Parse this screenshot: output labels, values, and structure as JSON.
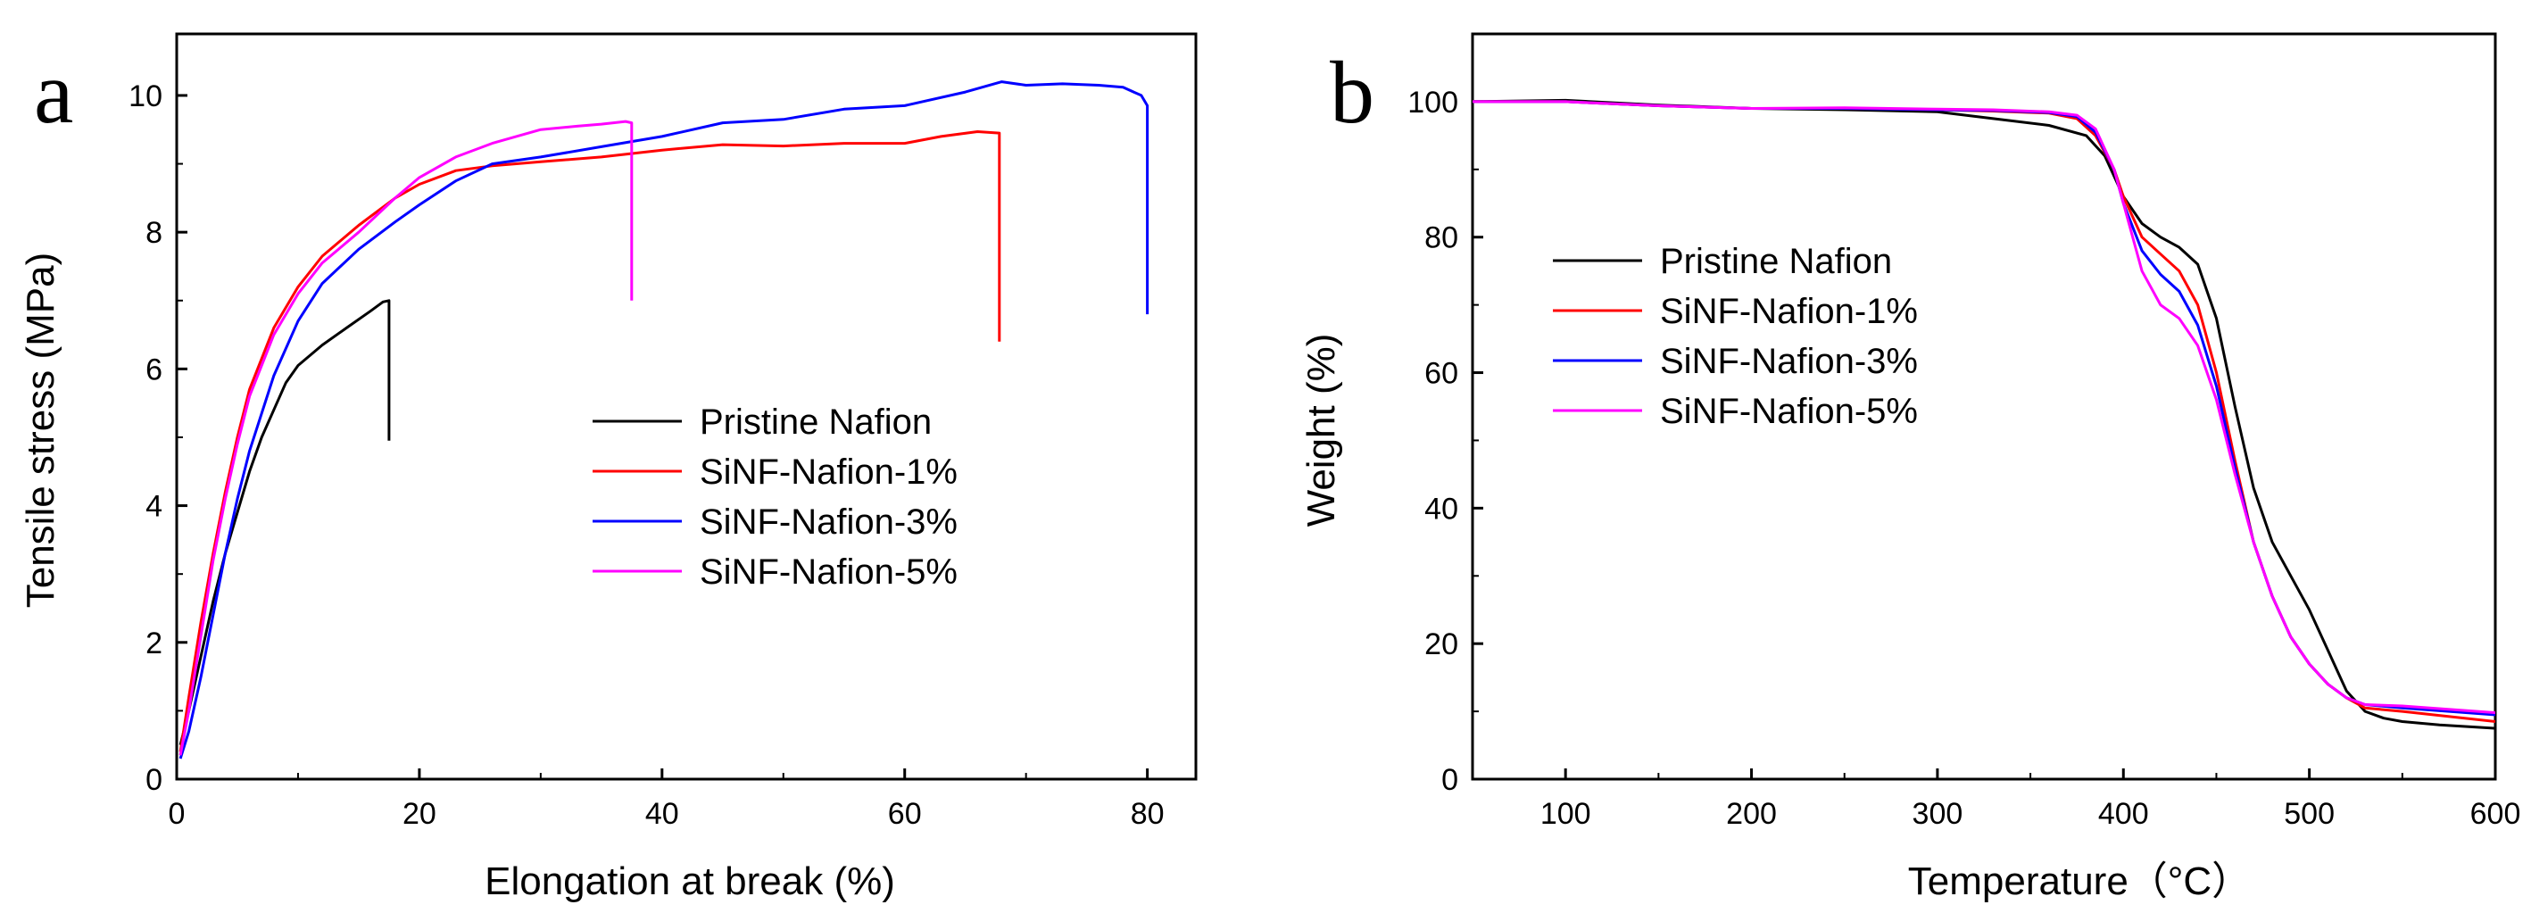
{
  "chart_data": [
    {
      "type": "line",
      "panel_label": "a",
      "xlabel": "Elongation at break (%)",
      "ylabel": "Tensile stress (MPa)",
      "xlim": [
        0,
        84
      ],
      "ylim": [
        0,
        10.9
      ],
      "xticks": [
        0,
        20,
        40,
        60,
        80
      ],
      "yticks": [
        0,
        2,
        4,
        6,
        8,
        10
      ],
      "xtick_labels": [
        "0",
        "20",
        "40",
        "60",
        "80"
      ],
      "ytick_labels": [
        "0",
        "2",
        "4",
        "6",
        "8",
        "10"
      ],
      "grid": false,
      "legend_position": "center-right",
      "series": [
        {
          "name": "Pristine Nafion",
          "color": "#000000",
          "points": [
            [
              0.3,
              0.5
            ],
            [
              1,
              1.0
            ],
            [
              2,
              1.8
            ],
            [
              3,
              2.6
            ],
            [
              4,
              3.3
            ],
            [
              5,
              3.9
            ],
            [
              6,
              4.5
            ],
            [
              7,
              5.0
            ],
            [
              8,
              5.4
            ],
            [
              9,
              5.8
            ],
            [
              10,
              6.05
            ],
            [
              12,
              6.35
            ],
            [
              14,
              6.6
            ],
            [
              16,
              6.85
            ],
            [
              17,
              6.98
            ],
            [
              17.5,
              7.0
            ],
            [
              17.5,
              4.95
            ]
          ]
        },
        {
          "name": "SiNF-Nafion-1%",
          "color": "#ff0000",
          "points": [
            [
              0.3,
              0.4
            ],
            [
              1,
              1.2
            ],
            [
              2,
              2.3
            ],
            [
              3,
              3.3
            ],
            [
              4,
              4.2
            ],
            [
              5,
              5.0
            ],
            [
              6,
              5.7
            ],
            [
              8,
              6.6
            ],
            [
              10,
              7.2
            ],
            [
              12,
              7.65
            ],
            [
              15,
              8.1
            ],
            [
              18,
              8.5
            ],
            [
              20,
              8.7
            ],
            [
              23,
              8.9
            ],
            [
              26,
              8.97
            ],
            [
              30,
              9.03
            ],
            [
              35,
              9.1
            ],
            [
              40,
              9.2
            ],
            [
              45,
              9.28
            ],
            [
              50,
              9.26
            ],
            [
              55,
              9.3
            ],
            [
              60,
              9.3
            ],
            [
              63,
              9.4
            ],
            [
              66,
              9.47
            ],
            [
              67.8,
              9.45
            ],
            [
              67.8,
              6.4
            ]
          ]
        },
        {
          "name": "SiNF-Nafion-3%",
          "color": "#0000ff",
          "points": [
            [
              0.3,
              0.3
            ],
            [
              1,
              0.7
            ],
            [
              2,
              1.5
            ],
            [
              3,
              2.4
            ],
            [
              4,
              3.3
            ],
            [
              5,
              4.1
            ],
            [
              6,
              4.8
            ],
            [
              8,
              5.9
            ],
            [
              10,
              6.7
            ],
            [
              12,
              7.25
            ],
            [
              15,
              7.75
            ],
            [
              18,
              8.15
            ],
            [
              20,
              8.4
            ],
            [
              23,
              8.75
            ],
            [
              26,
              9.0
            ],
            [
              30,
              9.1
            ],
            [
              35,
              9.25
            ],
            [
              40,
              9.4
            ],
            [
              45,
              9.6
            ],
            [
              50,
              9.65
            ],
            [
              55,
              9.8
            ],
            [
              60,
              9.85
            ],
            [
              65,
              10.05
            ],
            [
              68,
              10.2
            ],
            [
              70,
              10.15
            ],
            [
              73,
              10.17
            ],
            [
              76,
              10.15
            ],
            [
              78,
              10.12
            ],
            [
              79.5,
              10.0
            ],
            [
              80,
              9.85
            ],
            [
              80,
              6.8
            ]
          ]
        },
        {
          "name": "SiNF-Nafion-5%",
          "color": "#ff00ff",
          "points": [
            [
              0.3,
              0.35
            ],
            [
              1,
              1.0
            ],
            [
              2,
              2.1
            ],
            [
              3,
              3.2
            ],
            [
              4,
              4.1
            ],
            [
              5,
              4.9
            ],
            [
              6,
              5.6
            ],
            [
              8,
              6.5
            ],
            [
              10,
              7.1
            ],
            [
              12,
              7.55
            ],
            [
              15,
              8.0
            ],
            [
              18,
              8.5
            ],
            [
              20,
              8.8
            ],
            [
              23,
              9.1
            ],
            [
              26,
              9.3
            ],
            [
              30,
              9.5
            ],
            [
              33,
              9.55
            ],
            [
              35,
              9.58
            ],
            [
              37,
              9.62
            ],
            [
              37.5,
              9.6
            ],
            [
              37.5,
              7.0
            ]
          ]
        }
      ]
    },
    {
      "type": "line",
      "panel_label": "b",
      "xlabel": "Temperature（°C）",
      "ylabel": "Weight (%)",
      "xlim": [
        50,
        600
      ],
      "ylim": [
        0,
        110
      ],
      "xticks": [
        100,
        200,
        300,
        400,
        500,
        600
      ],
      "yticks": [
        0,
        20,
        40,
        60,
        80,
        100
      ],
      "xtick_labels": [
        "100",
        "200",
        "300",
        "400",
        "500",
        "600"
      ],
      "ytick_labels": [
        "0",
        "20",
        "40",
        "60",
        "80",
        "100"
      ],
      "grid": false,
      "legend_position": "center-left",
      "series": [
        {
          "name": "Pristine Nafion",
          "color": "#000000",
          "points": [
            [
              50,
              100
            ],
            [
              100,
              100.2
            ],
            [
              150,
              99.5
            ],
            [
              200,
              99
            ],
            [
              250,
              98.8
            ],
            [
              300,
              98.5
            ],
            [
              330,
              97.5
            ],
            [
              360,
              96.5
            ],
            [
              380,
              95
            ],
            [
              390,
              92
            ],
            [
              400,
              86
            ],
            [
              410,
              82
            ],
            [
              420,
              80
            ],
            [
              430,
              78.5
            ],
            [
              440,
              76
            ],
            [
              450,
              68
            ],
            [
              460,
              55
            ],
            [
              470,
              43
            ],
            [
              480,
              35
            ],
            [
              490,
              30
            ],
            [
              500,
              25
            ],
            [
              510,
              19
            ],
            [
              520,
              13
            ],
            [
              530,
              10
            ],
            [
              540,
              9
            ],
            [
              550,
              8.5
            ],
            [
              570,
              8
            ],
            [
              600,
              7.5
            ]
          ]
        },
        {
          "name": "SiNF-Nafion-1%",
          "color": "#ff0000",
          "points": [
            [
              50,
              100
            ],
            [
              100,
              100
            ],
            [
              150,
              99.4
            ],
            [
              200,
              99
            ],
            [
              250,
              99
            ],
            [
              300,
              98.8
            ],
            [
              330,
              98.6
            ],
            [
              360,
              98.3
            ],
            [
              375,
              97.5
            ],
            [
              385,
              95
            ],
            [
              395,
              90
            ],
            [
              400,
              86
            ],
            [
              410,
              80
            ],
            [
              420,
              77.5
            ],
            [
              430,
              75
            ],
            [
              440,
              70
            ],
            [
              450,
              60
            ],
            [
              460,
              47
            ],
            [
              470,
              35
            ],
            [
              480,
              27
            ],
            [
              490,
              21
            ],
            [
              500,
              17
            ],
            [
              510,
              14
            ],
            [
              520,
              12
            ],
            [
              530,
              10.5
            ],
            [
              550,
              10
            ],
            [
              600,
              8.5
            ]
          ]
        },
        {
          "name": "SiNF-Nafion-3%",
          "color": "#0000ff",
          "points": [
            [
              50,
              100
            ],
            [
              100,
              100
            ],
            [
              150,
              99.4
            ],
            [
              200,
              99
            ],
            [
              250,
              99
            ],
            [
              300,
              98.8
            ],
            [
              330,
              98.7
            ],
            [
              360,
              98.4
            ],
            [
              375,
              97.8
            ],
            [
              385,
              95.5
            ],
            [
              395,
              90
            ],
            [
              400,
              85
            ],
            [
              410,
              78
            ],
            [
              420,
              74.5
            ],
            [
              430,
              72
            ],
            [
              440,
              67
            ],
            [
              450,
              58
            ],
            [
              460,
              46
            ],
            [
              470,
              35
            ],
            [
              480,
              27
            ],
            [
              490,
              21
            ],
            [
              500,
              17
            ],
            [
              510,
              14
            ],
            [
              520,
              12
            ],
            [
              530,
              11
            ],
            [
              550,
              10.5
            ],
            [
              600,
              9.5
            ]
          ]
        },
        {
          "name": "SiNF-Nafion-5%",
          "color": "#ff00ff",
          "points": [
            [
              50,
              100
            ],
            [
              100,
              100
            ],
            [
              150,
              99.4
            ],
            [
              200,
              99
            ],
            [
              250,
              99.1
            ],
            [
              300,
              98.9
            ],
            [
              330,
              98.8
            ],
            [
              360,
              98.5
            ],
            [
              375,
              98
            ],
            [
              385,
              96
            ],
            [
              395,
              90
            ],
            [
              400,
              85
            ],
            [
              410,
              75
            ],
            [
              420,
              70
            ],
            [
              430,
              68
            ],
            [
              440,
              64
            ],
            [
              450,
              56
            ],
            [
              460,
              45
            ],
            [
              470,
              35
            ],
            [
              480,
              27
            ],
            [
              490,
              21
            ],
            [
              500,
              17
            ],
            [
              510,
              14
            ],
            [
              520,
              12
            ],
            [
              530,
              11
            ],
            [
              550,
              10.8
            ],
            [
              600,
              9.8
            ]
          ]
        }
      ]
    }
  ]
}
